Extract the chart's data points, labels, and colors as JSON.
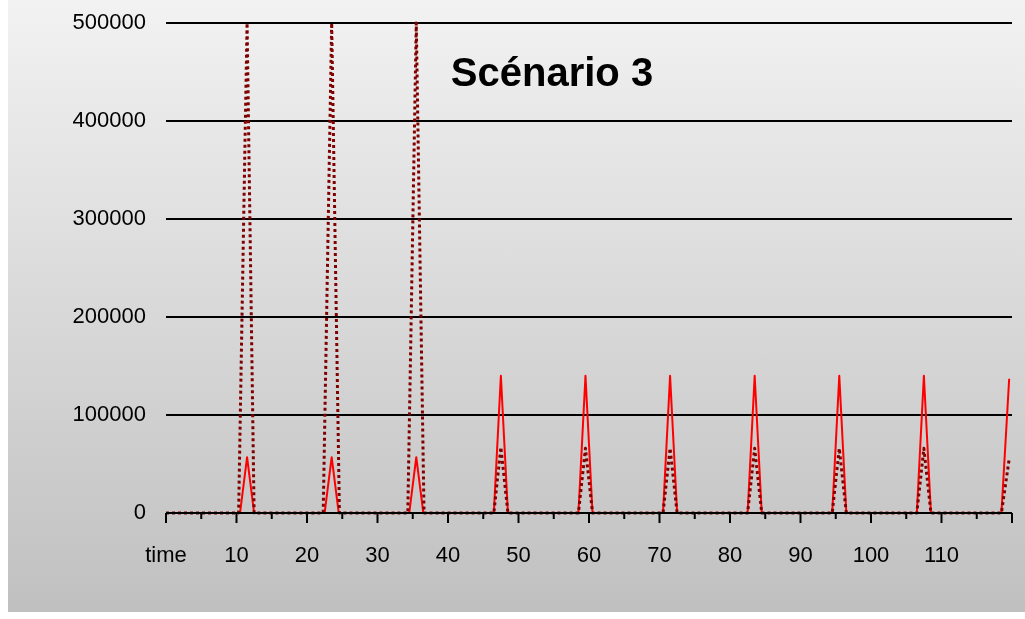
{
  "chart_data": {
    "type": "line",
    "title": "Scénario 3",
    "xlim": [
      0,
      120
    ],
    "xticks": [
      {
        "value": 0,
        "label": "time"
      },
      10,
      20,
      30,
      40,
      50,
      60,
      70,
      80,
      90,
      100,
      110,
      {
        "value": 120,
        "label": null
      }
    ],
    "ylim": [
      0,
      500000
    ],
    "yticks": [
      0,
      100000,
      200000,
      300000,
      400000,
      500000
    ],
    "grid": "y",
    "marker": "none",
    "series": [
      {
        "color": "#ff0000",
        "line_style": "solid",
        "x": [
          0,
          10.5,
          11.5,
          12.5,
          22.5,
          23.5,
          24.5,
          34.5,
          35.5,
          36.5,
          46.5,
          47.5,
          48.5,
          58.5,
          59.5,
          60.5,
          70.5,
          71.5,
          72.5,
          82.5,
          83.5,
          84.5,
          94.5,
          95.5,
          96.5,
          106.5,
          107.5,
          108.5,
          118.5,
          119.6
        ],
        "values": [
          0,
          0,
          57000,
          0,
          0,
          57000,
          0,
          0,
          57000,
          0,
          0,
          140000,
          0,
          0,
          140000,
          0,
          0,
          140000,
          0,
          0,
          140000,
          0,
          0,
          140000,
          0,
          0,
          140000,
          0,
          0,
          137000
        ]
      },
      {
        "color": "#800000",
        "line_style": "dotted",
        "x": [
          0,
          10.3,
          11.5,
          12.5,
          22.3,
          23.5,
          24.6,
          34.3,
          35.5,
          36.6,
          46.5,
          47.5,
          48.5,
          58.5,
          59.5,
          60.5,
          70.5,
          71.5,
          72.5,
          82.5,
          83.5,
          84.5,
          94.5,
          95.5,
          96.5,
          106.5,
          107.5,
          108.5,
          118.5,
          119.6
        ],
        "values": [
          0,
          0,
          500000,
          0,
          0,
          500000,
          0,
          0,
          500000,
          0,
          0,
          67000,
          0,
          0,
          66000,
          0,
          0,
          66000,
          0,
          0,
          66000,
          0,
          0,
          66000,
          0,
          0,
          66000,
          0,
          0,
          55000
        ]
      }
    ]
  }
}
